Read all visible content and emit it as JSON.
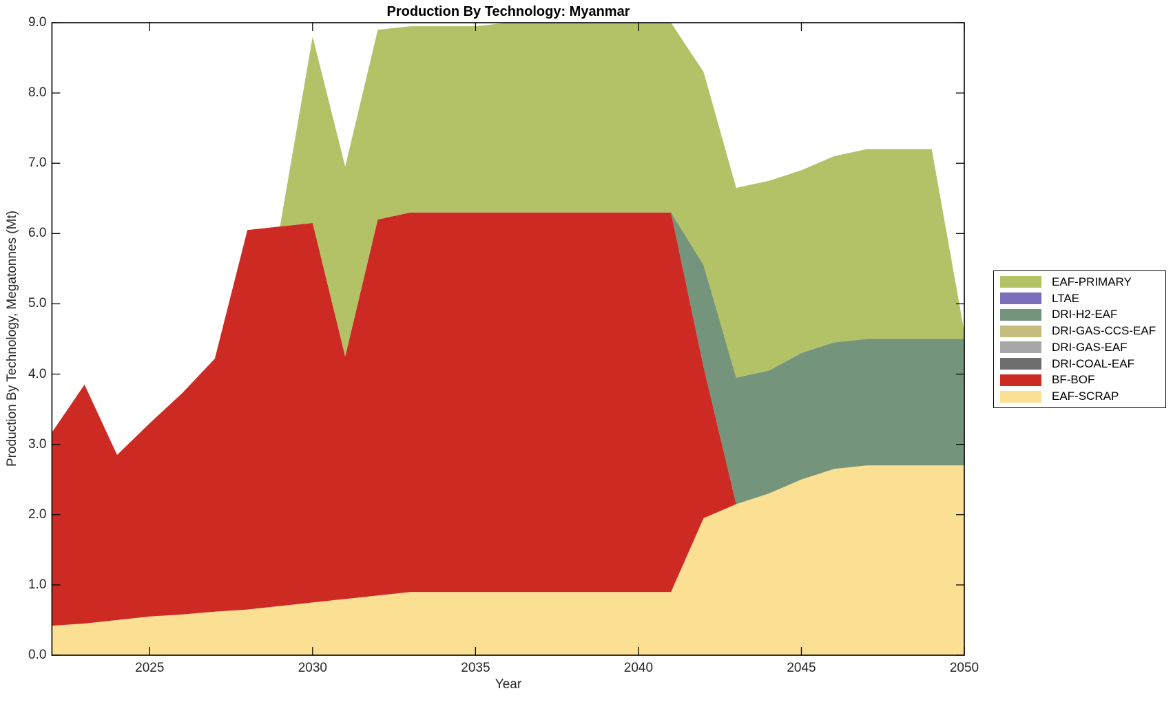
{
  "figure": {
    "title": "Production By Technology: Myanmar",
    "x_axis": {
      "label": "Year"
    },
    "y_axis": {
      "label": "Production By Technology, Megatonnes (Mt)"
    }
  },
  "chart_data": {
    "type": "area",
    "stacked": true,
    "title": "Production By Technology: Myanmar",
    "xlabel": "Year",
    "ylabel": "Production By Technology, Megatonnes (Mt)",
    "grid": false,
    "legend_position": "right-outside",
    "xlim": [
      2022,
      2050
    ],
    "ylim": [
      0,
      9
    ],
    "x_tick_values": [
      2025,
      2030,
      2035,
      2040,
      2045,
      2050
    ],
    "x_tick_labels": [
      "2025",
      "2030",
      "2035",
      "2040",
      "2045",
      "2050"
    ],
    "y_tick_values": [
      0,
      1,
      2,
      3,
      4,
      5,
      6,
      7,
      8,
      9
    ],
    "y_tick_labels": [
      "0.0",
      "1.0",
      "2.0",
      "3.0",
      "4.0",
      "5.0",
      "6.0",
      "7.0",
      "8.0",
      "9.0"
    ],
    "x": [
      2022,
      2023,
      2024,
      2025,
      2026,
      2027,
      2028,
      2029,
      2030,
      2031,
      2032,
      2033,
      2034,
      2035,
      2036,
      2037,
      2038,
      2039,
      2040,
      2041,
      2042,
      2043,
      2044,
      2045,
      2046,
      2047,
      2048,
      2049,
      2050
    ],
    "series": [
      {
        "name": "EAF-SCRAP",
        "color": "#fbdf92",
        "values": [
          0.42,
          0.45,
          0.5,
          0.55,
          0.58,
          0.62,
          0.65,
          0.7,
          0.75,
          0.8,
          0.85,
          0.9,
          0.9,
          0.9,
          0.9,
          0.9,
          0.9,
          0.9,
          0.9,
          0.9,
          1.95,
          2.15,
          2.3,
          2.5,
          2.65,
          2.7,
          2.7,
          2.7,
          2.7
        ]
      },
      {
        "name": "BF-BOF",
        "color": "#cd2a24",
        "values": [
          2.75,
          3.4,
          2.35,
          2.75,
          3.15,
          3.6,
          5.4,
          5.4,
          5.4,
          3.45,
          5.35,
          5.4,
          5.4,
          5.4,
          5.4,
          5.4,
          5.4,
          5.4,
          5.4,
          5.4,
          2.15,
          0,
          0,
          0,
          0,
          0,
          0,
          0,
          0
        ]
      },
      {
        "name": "DRI-COAL-EAF",
        "color": "#6e6e6e",
        "values": [
          0,
          0,
          0,
          0,
          0,
          0,
          0,
          0,
          0,
          0,
          0,
          0,
          0,
          0,
          0,
          0,
          0,
          0,
          0,
          0,
          0,
          0,
          0,
          0,
          0,
          0,
          0,
          0,
          0
        ]
      },
      {
        "name": "DRI-GAS-EAF",
        "color": "#a7a7a7",
        "values": [
          0,
          0,
          0,
          0,
          0,
          0,
          0,
          0,
          0,
          0,
          0,
          0,
          0,
          0,
          0,
          0,
          0,
          0,
          0,
          0,
          0,
          0,
          0,
          0,
          0,
          0,
          0,
          0,
          0
        ]
      },
      {
        "name": "DRI-GAS-CCS-EAF",
        "color": "#c4bd7d",
        "values": [
          0,
          0,
          0,
          0,
          0,
          0,
          0,
          0,
          0,
          0,
          0,
          0,
          0,
          0,
          0,
          0,
          0,
          0,
          0,
          0,
          0,
          0,
          0,
          0,
          0,
          0,
          0,
          0,
          0
        ]
      },
      {
        "name": "DRI-H2-EAF",
        "color": "#74957c",
        "values": [
          0,
          0,
          0,
          0,
          0,
          0,
          0,
          0,
          0,
          0,
          0,
          0,
          0,
          0,
          0,
          0,
          0,
          0,
          0,
          0,
          1.45,
          1.8,
          1.75,
          1.8,
          1.8,
          1.8,
          1.8,
          1.8,
          1.8
        ]
      },
      {
        "name": "LTAE",
        "color": "#7b6fba",
        "values": [
          0,
          0,
          0,
          0,
          0,
          0,
          0,
          0,
          0,
          0,
          0,
          0,
          0,
          0,
          0,
          0,
          0,
          0,
          0,
          0,
          0,
          0,
          0,
          0,
          0,
          0,
          0,
          0,
          0
        ]
      },
      {
        "name": "EAF-PRIMARY",
        "color": "#b3c167",
        "values": [
          0,
          0,
          0,
          0,
          0,
          0,
          0,
          0,
          2.65,
          2.7,
          2.7,
          2.65,
          2.65,
          2.65,
          2.7,
          2.7,
          2.7,
          2.7,
          2.7,
          2.7,
          2.75,
          2.7,
          2.7,
          2.6,
          2.65,
          2.7,
          2.7,
          2.7,
          0.1
        ]
      }
    ],
    "legend_order_top_to_bottom": [
      "EAF-PRIMARY",
      "LTAE",
      "DRI-H2-EAF",
      "DRI-GAS-CCS-EAF",
      "DRI-GAS-EAF",
      "DRI-COAL-EAF",
      "BF-BOF",
      "EAF-SCRAP"
    ]
  }
}
